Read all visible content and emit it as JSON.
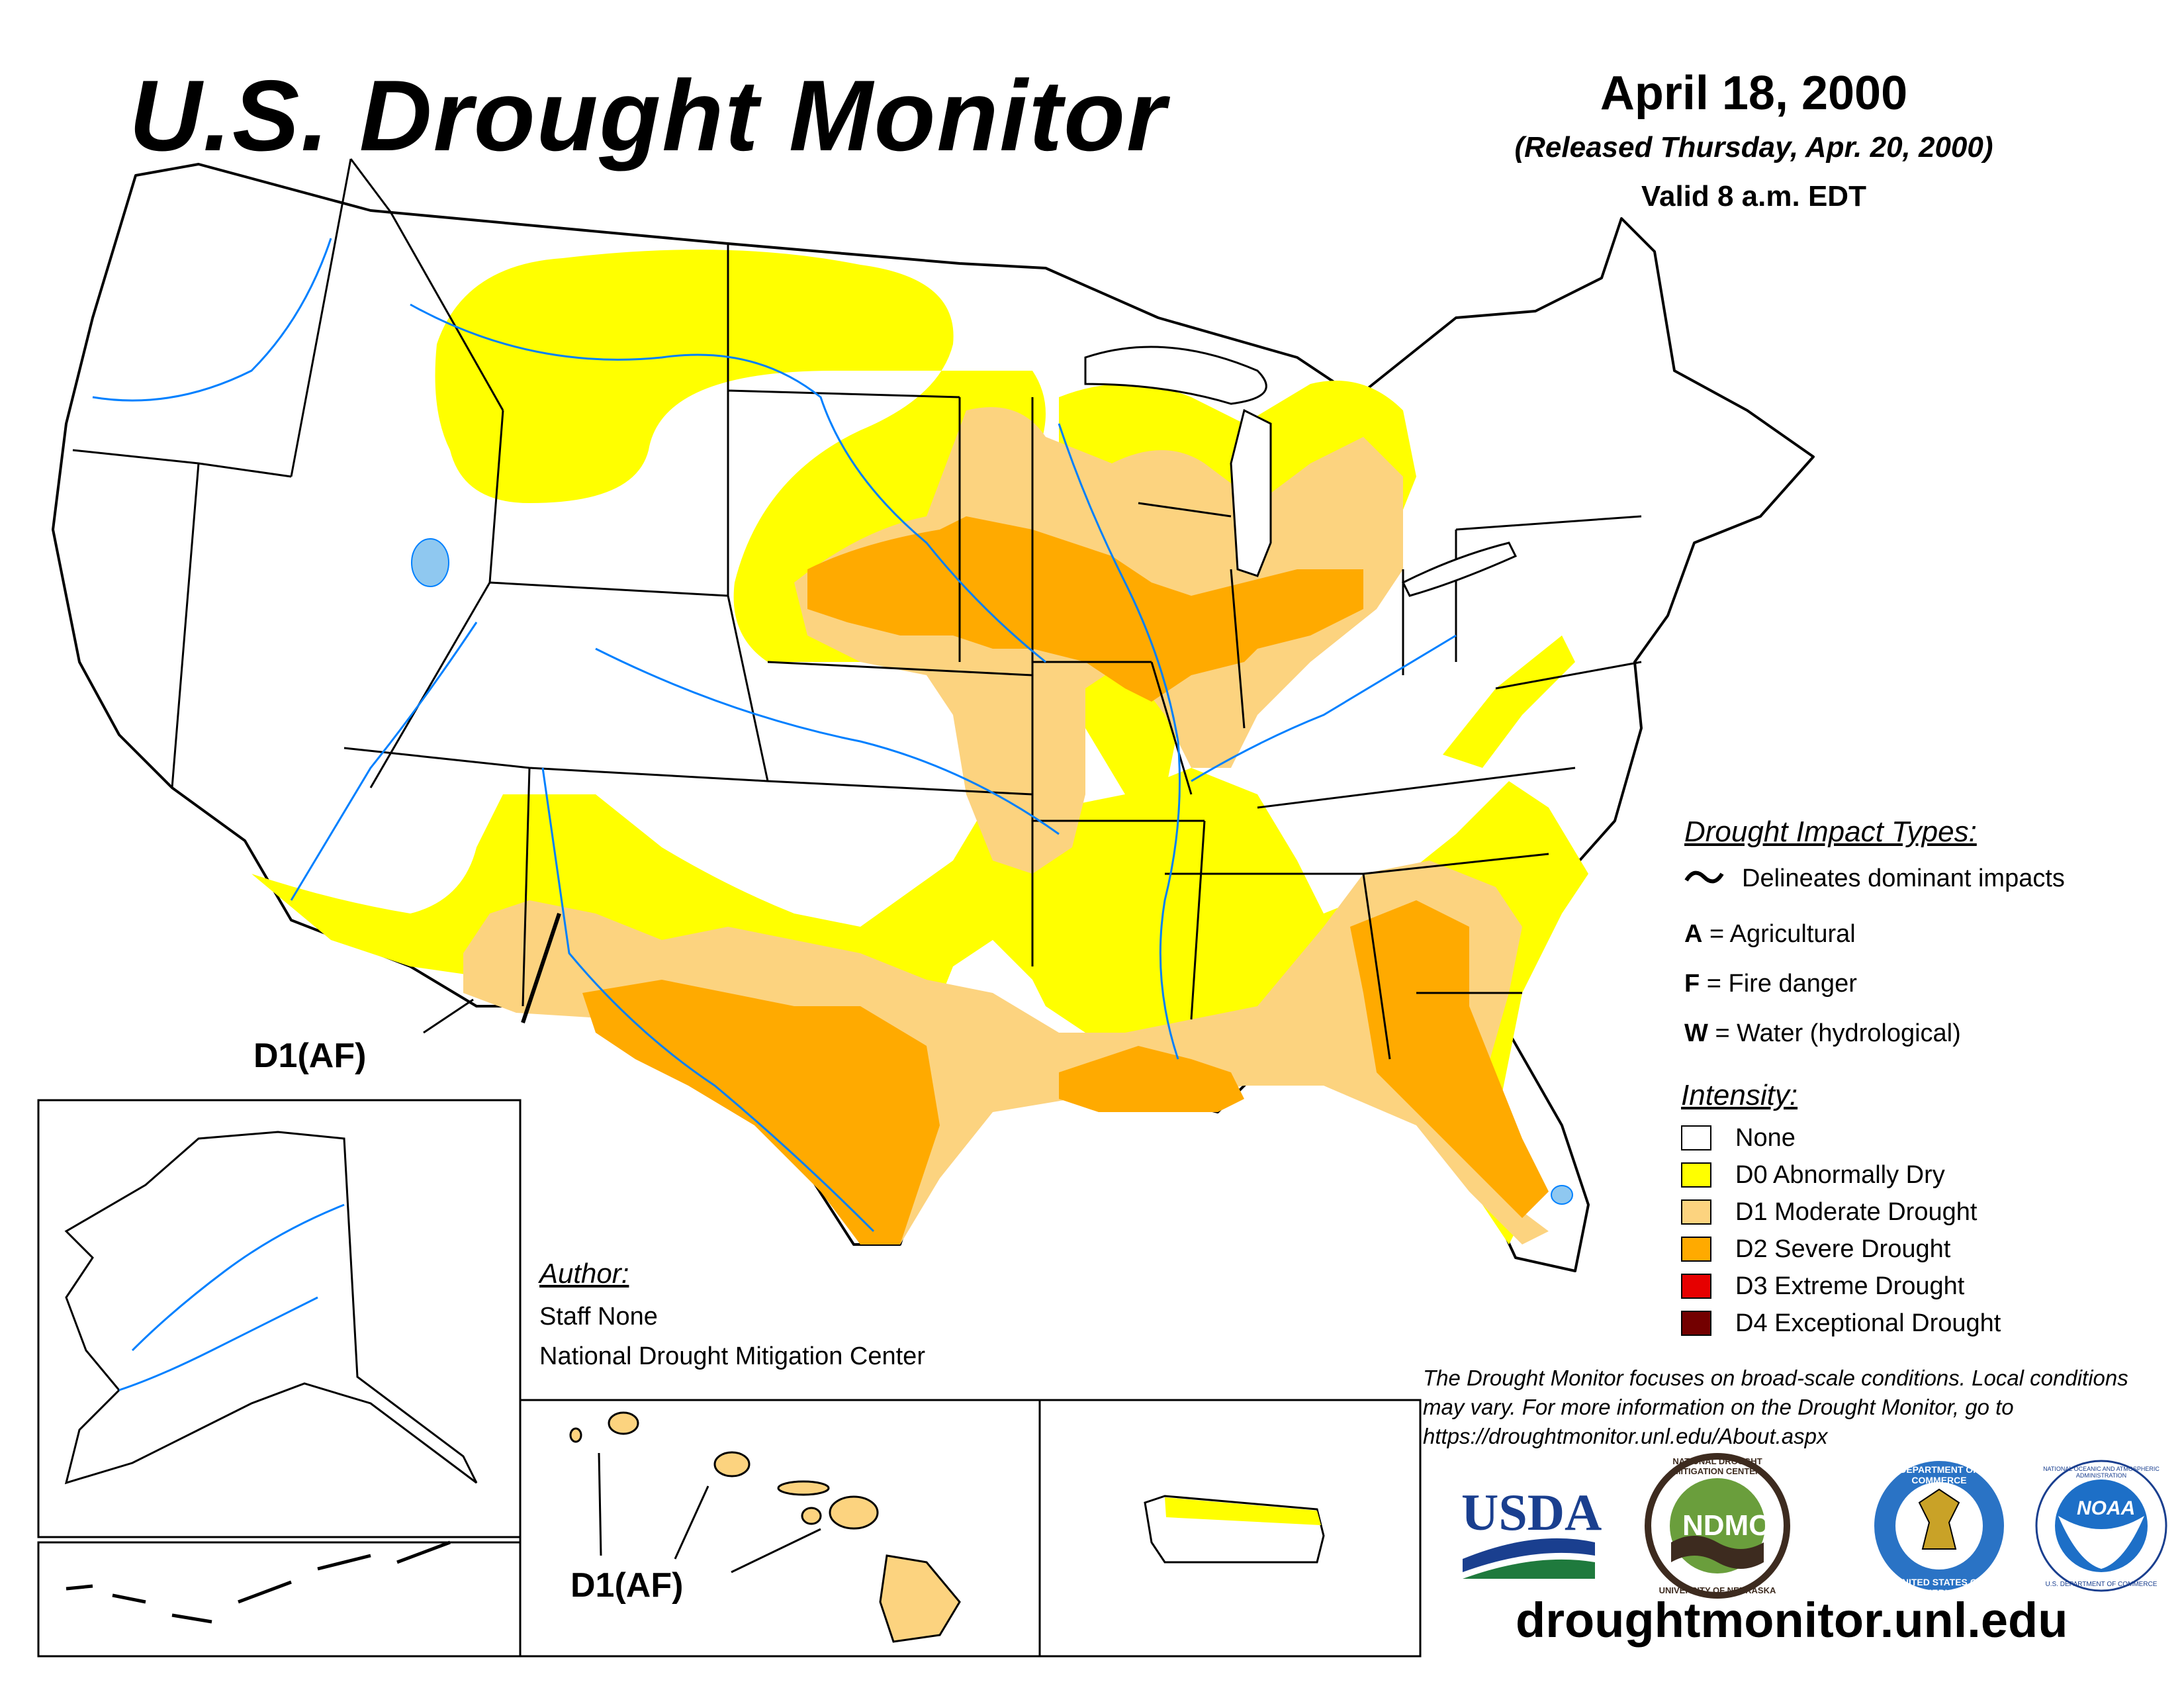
{
  "header": {
    "title": "U.S. Drought Monitor",
    "date": "April 18, 2000",
    "released": "(Released Thursday, Apr. 20, 2000)",
    "valid": "Valid 8 a.m. EDT"
  },
  "legend": {
    "impact_heading": "Drought Impact Types:",
    "impact_line": "Delineates dominant impacts",
    "impact_types": [
      {
        "code": "A",
        "label": "= Agricultural"
      },
      {
        "code": "F",
        "label": "= Fire danger"
      },
      {
        "code": "W",
        "label": "= Water (hydrological)"
      }
    ],
    "intensity_heading": "Intensity:",
    "intensity": [
      {
        "label": "None",
        "color": "#ffffff"
      },
      {
        "label": "D0 Abnormally Dry",
        "color": "#ffff00"
      },
      {
        "label": "D1 Moderate Drought",
        "color": "#fcd37f"
      },
      {
        "label": "D2 Severe Drought",
        "color": "#ffaa00"
      },
      {
        "label": "D3 Extreme Drought",
        "color": "#e60000"
      },
      {
        "label": "D4 Exceptional Drought",
        "color": "#730000"
      }
    ]
  },
  "callouts": {
    "mainland": "D1(AF)",
    "hawaii": "D1(AF)"
  },
  "author": {
    "heading": "Author:",
    "name": "Staff None",
    "org": "National Drought Mitigation Center"
  },
  "note": "The Drought Monitor focuses on broad-scale conditions. Local conditions may vary. For more information on the Drought Monitor, go to https://droughtmonitor.unl.edu/About.aspx",
  "logos": {
    "usda": "USDA",
    "ndmc": "NDMC",
    "ndmc_ring": "NATIONAL DROUGHT MITIGATION CENTER",
    "ndmc_ring_bottom": "UNIVERSITY OF NEBRASKA",
    "commerce_ring": "DEPARTMENT OF COMMERCE",
    "commerce_ring_bottom": "UNITED STATES OF AMERICA",
    "noaa": "NOAA",
    "noaa_ring": "NATIONAL OCEANIC AND ATMOSPHERIC ADMINISTRATION",
    "noaa_ring_bottom": "U.S. DEPARTMENT OF COMMERCE"
  },
  "website": "droughtmonitor.unl.edu",
  "colors": {
    "d0": "#ffff00",
    "d1": "#fcd37f",
    "d2": "#ffaa00",
    "water": "#0080ff",
    "lake": "#8fc8f0"
  }
}
